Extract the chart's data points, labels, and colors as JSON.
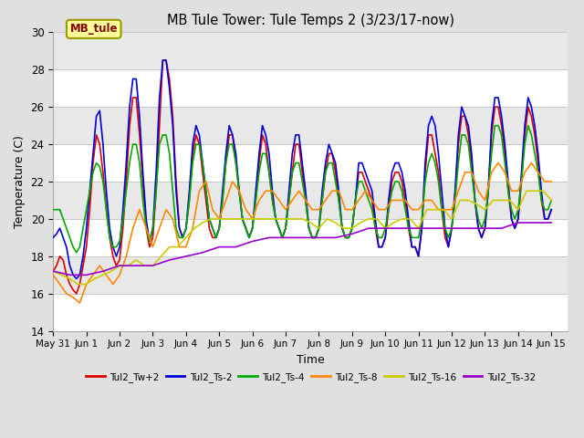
{
  "title": "MB Tule Tower: Tule Temps 2 (3/23/17-now)",
  "xlabel": "Time",
  "ylabel": "Temperature (C)",
  "ylim": [
    14,
    30
  ],
  "yticks": [
    14,
    16,
    18,
    20,
    22,
    24,
    26,
    28,
    30
  ],
  "xlim_min": 0,
  "xlim_max": 15.5,
  "xtick_labels": [
    "May 31",
    "Jun 1",
    "Jun 2",
    "Jun 3",
    "Jun 4",
    "Jun 5",
    "Jun 6",
    "Jun 7",
    "Jun 8",
    "Jun 9",
    "Jun 10",
    "Jun 11",
    "Jun 12",
    "Jun 13",
    "Jun 14",
    "Jun 15"
  ],
  "xtick_positions": [
    0,
    1,
    2,
    3,
    4,
    5,
    6,
    7,
    8,
    9,
    10,
    11,
    12,
    13,
    14,
    15
  ],
  "bg_color": "#e0e0e0",
  "plot_bg_color": "#ffffff",
  "alt_band_color": "#e8e8e8",
  "grid_color": "#c8c8c8",
  "annotation_text": "MB_tule",
  "annotation_color": "#880000",
  "annotation_bg": "#ffff99",
  "annotation_border": "#999900",
  "legend_entries": [
    {
      "label": "Tul2_Tw+2",
      "color": "#dd0000"
    },
    {
      "label": "Tul2_Ts-2",
      "color": "#0000dd"
    },
    {
      "label": "Tul2_Ts-4",
      "color": "#00aa00"
    },
    {
      "label": "Tul2_Ts-8",
      "color": "#ff8800"
    },
    {
      "label": "Tul2_Ts-16",
      "color": "#cccc00"
    },
    {
      "label": "Tul2_Ts-32",
      "color": "#9900cc"
    }
  ],
  "series": {
    "Tul2_Tw+2": {
      "color": "#dd0000",
      "lw": 1.2,
      "x": [
        0.0,
        0.1,
        0.2,
        0.3,
        0.4,
        0.5,
        0.6,
        0.7,
        0.8,
        0.9,
        1.0,
        1.1,
        1.2,
        1.3,
        1.4,
        1.5,
        1.6,
        1.7,
        1.8,
        1.9,
        2.0,
        2.1,
        2.2,
        2.3,
        2.4,
        2.5,
        2.6,
        2.7,
        2.8,
        2.9,
        3.0,
        3.1,
        3.2,
        3.3,
        3.4,
        3.5,
        3.6,
        3.7,
        3.8,
        3.9,
        4.0,
        4.1,
        4.2,
        4.3,
        4.4,
        4.5,
        4.6,
        4.7,
        4.8,
        4.9,
        5.0,
        5.1,
        5.2,
        5.3,
        5.4,
        5.5,
        5.6,
        5.7,
        5.8,
        5.9,
        6.0,
        6.1,
        6.2,
        6.3,
        6.4,
        6.5,
        6.6,
        6.7,
        6.8,
        6.9,
        7.0,
        7.1,
        7.2,
        7.3,
        7.4,
        7.5,
        7.6,
        7.7,
        7.8,
        7.9,
        8.0,
        8.1,
        8.2,
        8.3,
        8.4,
        8.5,
        8.6,
        8.7,
        8.8,
        8.9,
        9.0,
        9.1,
        9.2,
        9.3,
        9.4,
        9.5,
        9.6,
        9.7,
        9.8,
        9.9,
        10.0,
        10.1,
        10.2,
        10.3,
        10.4,
        10.5,
        10.6,
        10.7,
        10.8,
        10.9,
        11.0,
        11.1,
        11.2,
        11.3,
        11.4,
        11.5,
        11.6,
        11.7,
        11.8,
        11.9,
        12.0,
        12.1,
        12.2,
        12.3,
        12.4,
        12.5,
        12.6,
        12.7,
        12.8,
        12.9,
        13.0,
        13.1,
        13.2,
        13.3,
        13.4,
        13.5,
        13.6,
        13.7,
        13.8,
        13.9,
        14.0,
        14.1,
        14.2,
        14.3,
        14.4,
        14.5,
        14.6,
        14.7,
        14.8,
        14.9,
        15.0
      ],
      "y": [
        17.2,
        17.5,
        18.0,
        17.8,
        17.0,
        16.5,
        16.2,
        16.0,
        16.5,
        17.5,
        18.5,
        20.5,
        23.0,
        24.5,
        24.0,
        22.5,
        20.5,
        19.0,
        18.0,
        17.5,
        17.8,
        19.5,
        22.0,
        25.0,
        26.5,
        26.5,
        24.5,
        22.0,
        19.5,
        18.5,
        19.0,
        21.5,
        25.0,
        28.5,
        28.5,
        27.5,
        25.5,
        22.0,
        19.5,
        19.0,
        19.5,
        21.0,
        23.5,
        24.5,
        24.0,
        22.5,
        21.0,
        19.5,
        19.0,
        19.0,
        19.5,
        21.0,
        23.0,
        24.5,
        24.5,
        23.0,
        21.5,
        20.0,
        19.5,
        19.0,
        19.5,
        21.0,
        23.0,
        24.5,
        24.0,
        22.5,
        21.0,
        20.0,
        19.5,
        19.0,
        19.5,
        21.0,
        22.5,
        24.0,
        24.0,
        22.5,
        21.0,
        19.5,
        19.0,
        19.0,
        19.5,
        21.0,
        22.5,
        23.5,
        23.5,
        22.5,
        21.0,
        19.5,
        19.0,
        19.0,
        19.5,
        21.0,
        22.5,
        22.5,
        22.0,
        21.5,
        21.0,
        19.5,
        18.5,
        18.5,
        19.0,
        20.5,
        22.0,
        22.5,
        22.5,
        22.0,
        21.0,
        19.5,
        18.5,
        18.5,
        18.0,
        19.5,
        22.5,
        24.5,
        24.5,
        23.5,
        22.5,
        20.5,
        19.0,
        18.5,
        19.5,
        21.0,
        24.0,
        25.5,
        25.5,
        24.5,
        23.0,
        21.0,
        19.5,
        19.0,
        19.5,
        21.5,
        24.5,
        26.0,
        26.0,
        25.0,
        23.5,
        21.5,
        20.0,
        19.5,
        20.0,
        22.0,
        24.5,
        26.0,
        25.5,
        24.5,
        23.0,
        21.0,
        20.0,
        20.0,
        20.5
      ]
    },
    "Tul2_Ts-2": {
      "color": "#0000dd",
      "lw": 1.2,
      "x": [
        0.0,
        0.1,
        0.2,
        0.3,
        0.4,
        0.5,
        0.6,
        0.7,
        0.8,
        0.9,
        1.0,
        1.1,
        1.2,
        1.3,
        1.4,
        1.5,
        1.6,
        1.7,
        1.8,
        1.9,
        2.0,
        2.1,
        2.2,
        2.3,
        2.4,
        2.5,
        2.6,
        2.7,
        2.8,
        2.9,
        3.0,
        3.1,
        3.2,
        3.3,
        3.4,
        3.5,
        3.6,
        3.7,
        3.8,
        3.9,
        4.0,
        4.1,
        4.2,
        4.3,
        4.4,
        4.5,
        4.6,
        4.7,
        4.8,
        4.9,
        5.0,
        5.1,
        5.2,
        5.3,
        5.4,
        5.5,
        5.6,
        5.7,
        5.8,
        5.9,
        6.0,
        6.1,
        6.2,
        6.3,
        6.4,
        6.5,
        6.6,
        6.7,
        6.8,
        6.9,
        7.0,
        7.1,
        7.2,
        7.3,
        7.4,
        7.5,
        7.6,
        7.7,
        7.8,
        7.9,
        8.0,
        8.1,
        8.2,
        8.3,
        8.4,
        8.5,
        8.6,
        8.7,
        8.8,
        8.9,
        9.0,
        9.1,
        9.2,
        9.3,
        9.4,
        9.5,
        9.6,
        9.7,
        9.8,
        9.9,
        10.0,
        10.1,
        10.2,
        10.3,
        10.4,
        10.5,
        10.6,
        10.7,
        10.8,
        10.9,
        11.0,
        11.1,
        11.2,
        11.3,
        11.4,
        11.5,
        11.6,
        11.7,
        11.8,
        11.9,
        12.0,
        12.1,
        12.2,
        12.3,
        12.4,
        12.5,
        12.6,
        12.7,
        12.8,
        12.9,
        13.0,
        13.1,
        13.2,
        13.3,
        13.4,
        13.5,
        13.6,
        13.7,
        13.8,
        13.9,
        14.0,
        14.1,
        14.2,
        14.3,
        14.4,
        14.5,
        14.6,
        14.7,
        14.8,
        14.9,
        15.0
      ],
      "y": [
        19.0,
        19.2,
        19.5,
        19.0,
        18.5,
        17.5,
        17.0,
        16.8,
        17.0,
        18.0,
        19.5,
        21.5,
        23.5,
        25.5,
        25.8,
        24.0,
        21.5,
        19.5,
        18.5,
        18.0,
        18.5,
        20.5,
        23.0,
        26.0,
        27.5,
        27.5,
        25.5,
        22.5,
        20.0,
        18.8,
        19.5,
        22.5,
        26.5,
        28.5,
        28.5,
        27.0,
        25.0,
        21.5,
        19.5,
        19.0,
        19.5,
        21.5,
        24.0,
        25.0,
        24.5,
        23.0,
        21.5,
        20.0,
        19.5,
        19.0,
        19.5,
        21.5,
        23.5,
        25.0,
        24.5,
        23.5,
        21.5,
        20.0,
        19.5,
        19.0,
        19.5,
        21.5,
        23.5,
        25.0,
        24.5,
        23.5,
        21.5,
        20.0,
        19.5,
        19.0,
        19.5,
        21.5,
        23.5,
        24.5,
        24.5,
        23.0,
        21.5,
        19.5,
        19.0,
        19.0,
        19.5,
        21.5,
        23.0,
        24.0,
        23.5,
        23.0,
        21.5,
        19.5,
        19.0,
        19.0,
        19.5,
        21.0,
        23.0,
        23.0,
        22.5,
        22.0,
        21.5,
        20.0,
        18.5,
        18.5,
        19.0,
        21.0,
        22.5,
        23.0,
        23.0,
        22.5,
        21.5,
        20.0,
        18.5,
        18.5,
        18.0,
        19.5,
        23.0,
        25.0,
        25.5,
        25.0,
        23.5,
        21.5,
        19.5,
        18.5,
        19.5,
        21.5,
        24.5,
        26.0,
        25.5,
        25.0,
        23.5,
        21.0,
        19.5,
        19.0,
        19.5,
        21.5,
        25.0,
        26.5,
        26.5,
        25.5,
        24.0,
        22.0,
        20.0,
        19.5,
        20.0,
        22.5,
        25.0,
        26.5,
        26.0,
        25.0,
        23.5,
        21.5,
        20.0,
        20.0,
        20.5
      ]
    },
    "Tul2_Ts-4": {
      "color": "#00aa00",
      "lw": 1.2,
      "x": [
        0.0,
        0.1,
        0.2,
        0.3,
        0.4,
        0.5,
        0.6,
        0.7,
        0.8,
        0.9,
        1.0,
        1.1,
        1.2,
        1.3,
        1.4,
        1.5,
        1.6,
        1.7,
        1.8,
        1.9,
        2.0,
        2.1,
        2.2,
        2.3,
        2.4,
        2.5,
        2.6,
        2.7,
        2.8,
        2.9,
        3.0,
        3.1,
        3.2,
        3.3,
        3.4,
        3.5,
        3.6,
        3.7,
        3.8,
        3.9,
        4.0,
        4.1,
        4.2,
        4.3,
        4.4,
        4.5,
        4.6,
        4.7,
        4.8,
        4.9,
        5.0,
        5.1,
        5.2,
        5.3,
        5.4,
        5.5,
        5.6,
        5.7,
        5.8,
        5.9,
        6.0,
        6.1,
        6.2,
        6.3,
        6.4,
        6.5,
        6.6,
        6.7,
        6.8,
        6.9,
        7.0,
        7.1,
        7.2,
        7.3,
        7.4,
        7.5,
        7.6,
        7.7,
        7.8,
        7.9,
        8.0,
        8.1,
        8.2,
        8.3,
        8.4,
        8.5,
        8.6,
        8.7,
        8.8,
        8.9,
        9.0,
        9.1,
        9.2,
        9.3,
        9.4,
        9.5,
        9.6,
        9.7,
        9.8,
        9.9,
        10.0,
        10.1,
        10.2,
        10.3,
        10.4,
        10.5,
        10.6,
        10.7,
        10.8,
        10.9,
        11.0,
        11.1,
        11.2,
        11.3,
        11.4,
        11.5,
        11.6,
        11.7,
        11.8,
        11.9,
        12.0,
        12.1,
        12.2,
        12.3,
        12.4,
        12.5,
        12.6,
        12.7,
        12.8,
        12.9,
        13.0,
        13.1,
        13.2,
        13.3,
        13.4,
        13.5,
        13.6,
        13.7,
        13.8,
        13.9,
        14.0,
        14.1,
        14.2,
        14.3,
        14.4,
        14.5,
        14.6,
        14.7,
        14.8,
        14.9,
        15.0
      ],
      "y": [
        20.5,
        20.5,
        20.5,
        20.0,
        19.5,
        19.0,
        18.5,
        18.2,
        18.5,
        19.5,
        20.5,
        21.5,
        22.5,
        23.0,
        22.8,
        22.0,
        20.5,
        19.0,
        18.5,
        18.5,
        18.8,
        20.0,
        21.5,
        23.0,
        24.0,
        24.0,
        23.0,
        21.0,
        19.5,
        18.8,
        19.5,
        21.5,
        24.0,
        24.5,
        24.5,
        23.5,
        21.5,
        19.5,
        19.0,
        19.0,
        19.5,
        21.0,
        23.0,
        24.0,
        24.0,
        23.0,
        21.5,
        20.0,
        19.5,
        19.0,
        19.5,
        21.0,
        23.0,
        24.0,
        24.0,
        23.0,
        21.5,
        20.0,
        19.5,
        19.0,
        19.5,
        21.0,
        22.5,
        23.5,
        23.5,
        22.5,
        21.0,
        20.0,
        19.5,
        19.0,
        19.5,
        21.0,
        22.5,
        23.0,
        23.0,
        22.0,
        21.0,
        19.5,
        19.0,
        19.0,
        19.5,
        21.0,
        22.5,
        23.0,
        23.0,
        22.0,
        21.0,
        19.5,
        19.0,
        19.0,
        19.5,
        21.0,
        22.0,
        22.0,
        21.5,
        21.0,
        20.5,
        19.5,
        19.0,
        19.0,
        19.5,
        20.5,
        21.5,
        22.0,
        22.0,
        21.5,
        20.5,
        19.5,
        19.0,
        19.0,
        19.0,
        20.0,
        22.0,
        23.0,
        23.5,
        23.0,
        22.0,
        20.5,
        19.5,
        19.0,
        19.5,
        21.0,
        23.0,
        24.5,
        24.5,
        24.0,
        22.5,
        21.0,
        20.0,
        19.5,
        20.0,
        21.5,
        23.5,
        25.0,
        25.0,
        24.5,
        23.0,
        21.5,
        20.5,
        20.0,
        20.5,
        22.0,
        24.0,
        25.0,
        24.5,
        23.5,
        22.5,
        21.0,
        20.5,
        20.5,
        21.0
      ]
    },
    "Tul2_Ts-8": {
      "color": "#ff8800",
      "lw": 1.2,
      "x": [
        0.0,
        0.2,
        0.4,
        0.6,
        0.8,
        1.0,
        1.2,
        1.4,
        1.6,
        1.8,
        2.0,
        2.2,
        2.4,
        2.6,
        2.8,
        3.0,
        3.2,
        3.4,
        3.6,
        3.8,
        4.0,
        4.2,
        4.4,
        4.6,
        4.8,
        5.0,
        5.2,
        5.4,
        5.6,
        5.8,
        6.0,
        6.2,
        6.4,
        6.6,
        6.8,
        7.0,
        7.2,
        7.4,
        7.6,
        7.8,
        8.0,
        8.2,
        8.4,
        8.6,
        8.8,
        9.0,
        9.2,
        9.4,
        9.6,
        9.8,
        10.0,
        10.2,
        10.4,
        10.6,
        10.8,
        11.0,
        11.2,
        11.4,
        11.6,
        11.8,
        12.0,
        12.2,
        12.4,
        12.6,
        12.8,
        13.0,
        13.2,
        13.4,
        13.6,
        13.8,
        14.0,
        14.2,
        14.4,
        14.6,
        14.8,
        15.0
      ],
      "y": [
        17.0,
        16.5,
        16.0,
        15.8,
        15.5,
        16.5,
        17.0,
        17.5,
        17.0,
        16.5,
        17.0,
        18.0,
        19.5,
        20.5,
        19.5,
        18.5,
        19.5,
        20.5,
        20.0,
        18.5,
        18.5,
        19.5,
        21.5,
        22.0,
        20.5,
        20.0,
        21.0,
        22.0,
        21.5,
        20.5,
        20.0,
        21.0,
        21.5,
        21.5,
        21.0,
        20.5,
        21.0,
        21.5,
        21.0,
        20.5,
        20.5,
        21.0,
        21.5,
        21.5,
        20.5,
        20.5,
        21.0,
        21.5,
        21.0,
        20.5,
        20.5,
        21.0,
        21.0,
        21.0,
        20.5,
        20.5,
        21.0,
        21.0,
        20.5,
        20.5,
        20.5,
        21.5,
        22.5,
        22.5,
        21.5,
        21.0,
        22.5,
        23.0,
        22.5,
        21.5,
        21.5,
        22.5,
        23.0,
        22.5,
        22.0,
        22.0
      ]
    },
    "Tul2_Ts-16": {
      "color": "#cccc00",
      "lw": 1.2,
      "x": [
        0.0,
        0.25,
        0.5,
        0.75,
        1.0,
        1.25,
        1.5,
        1.75,
        2.0,
        2.25,
        2.5,
        2.75,
        3.0,
        3.25,
        3.5,
        3.75,
        4.0,
        4.25,
        4.5,
        4.75,
        5.0,
        5.25,
        5.5,
        5.75,
        6.0,
        6.25,
        6.5,
        6.75,
        7.0,
        7.25,
        7.5,
        7.75,
        8.0,
        8.25,
        8.5,
        8.75,
        9.0,
        9.25,
        9.5,
        9.75,
        10.0,
        10.25,
        10.5,
        10.75,
        11.0,
        11.25,
        11.5,
        11.75,
        12.0,
        12.25,
        12.5,
        12.75,
        13.0,
        13.25,
        13.5,
        13.75,
        14.0,
        14.25,
        14.5,
        14.75,
        15.0
      ],
      "y": [
        17.2,
        17.0,
        16.8,
        16.5,
        16.5,
        16.8,
        17.0,
        17.2,
        17.5,
        17.5,
        17.8,
        17.5,
        17.5,
        18.0,
        18.5,
        18.5,
        19.0,
        19.5,
        19.8,
        20.0,
        20.0,
        20.0,
        20.0,
        20.0,
        20.0,
        20.0,
        20.0,
        20.0,
        20.0,
        20.0,
        20.0,
        19.8,
        19.5,
        20.0,
        19.8,
        19.5,
        19.5,
        19.8,
        20.0,
        20.0,
        19.5,
        19.8,
        20.0,
        20.0,
        19.5,
        20.5,
        20.5,
        20.5,
        20.0,
        21.0,
        21.0,
        20.8,
        20.5,
        21.0,
        21.0,
        21.0,
        20.5,
        21.5,
        21.5,
        21.5,
        21.0
      ]
    },
    "Tul2_Ts-32": {
      "color": "#9900cc",
      "lw": 1.2,
      "x": [
        0.0,
        0.5,
        1.0,
        1.5,
        2.0,
        2.5,
        3.0,
        3.5,
        4.0,
        4.5,
        5.0,
        5.5,
        6.0,
        6.5,
        7.0,
        7.5,
        8.0,
        8.5,
        9.0,
        9.5,
        10.0,
        10.5,
        11.0,
        11.5,
        12.0,
        12.5,
        13.0,
        13.5,
        14.0,
        14.5,
        15.0
      ],
      "y": [
        17.2,
        17.0,
        17.0,
        17.2,
        17.5,
        17.5,
        17.5,
        17.8,
        18.0,
        18.2,
        18.5,
        18.5,
        18.8,
        19.0,
        19.0,
        19.0,
        19.0,
        19.0,
        19.2,
        19.5,
        19.5,
        19.5,
        19.5,
        19.5,
        19.5,
        19.5,
        19.5,
        19.5,
        19.8,
        19.8,
        19.8
      ]
    }
  }
}
